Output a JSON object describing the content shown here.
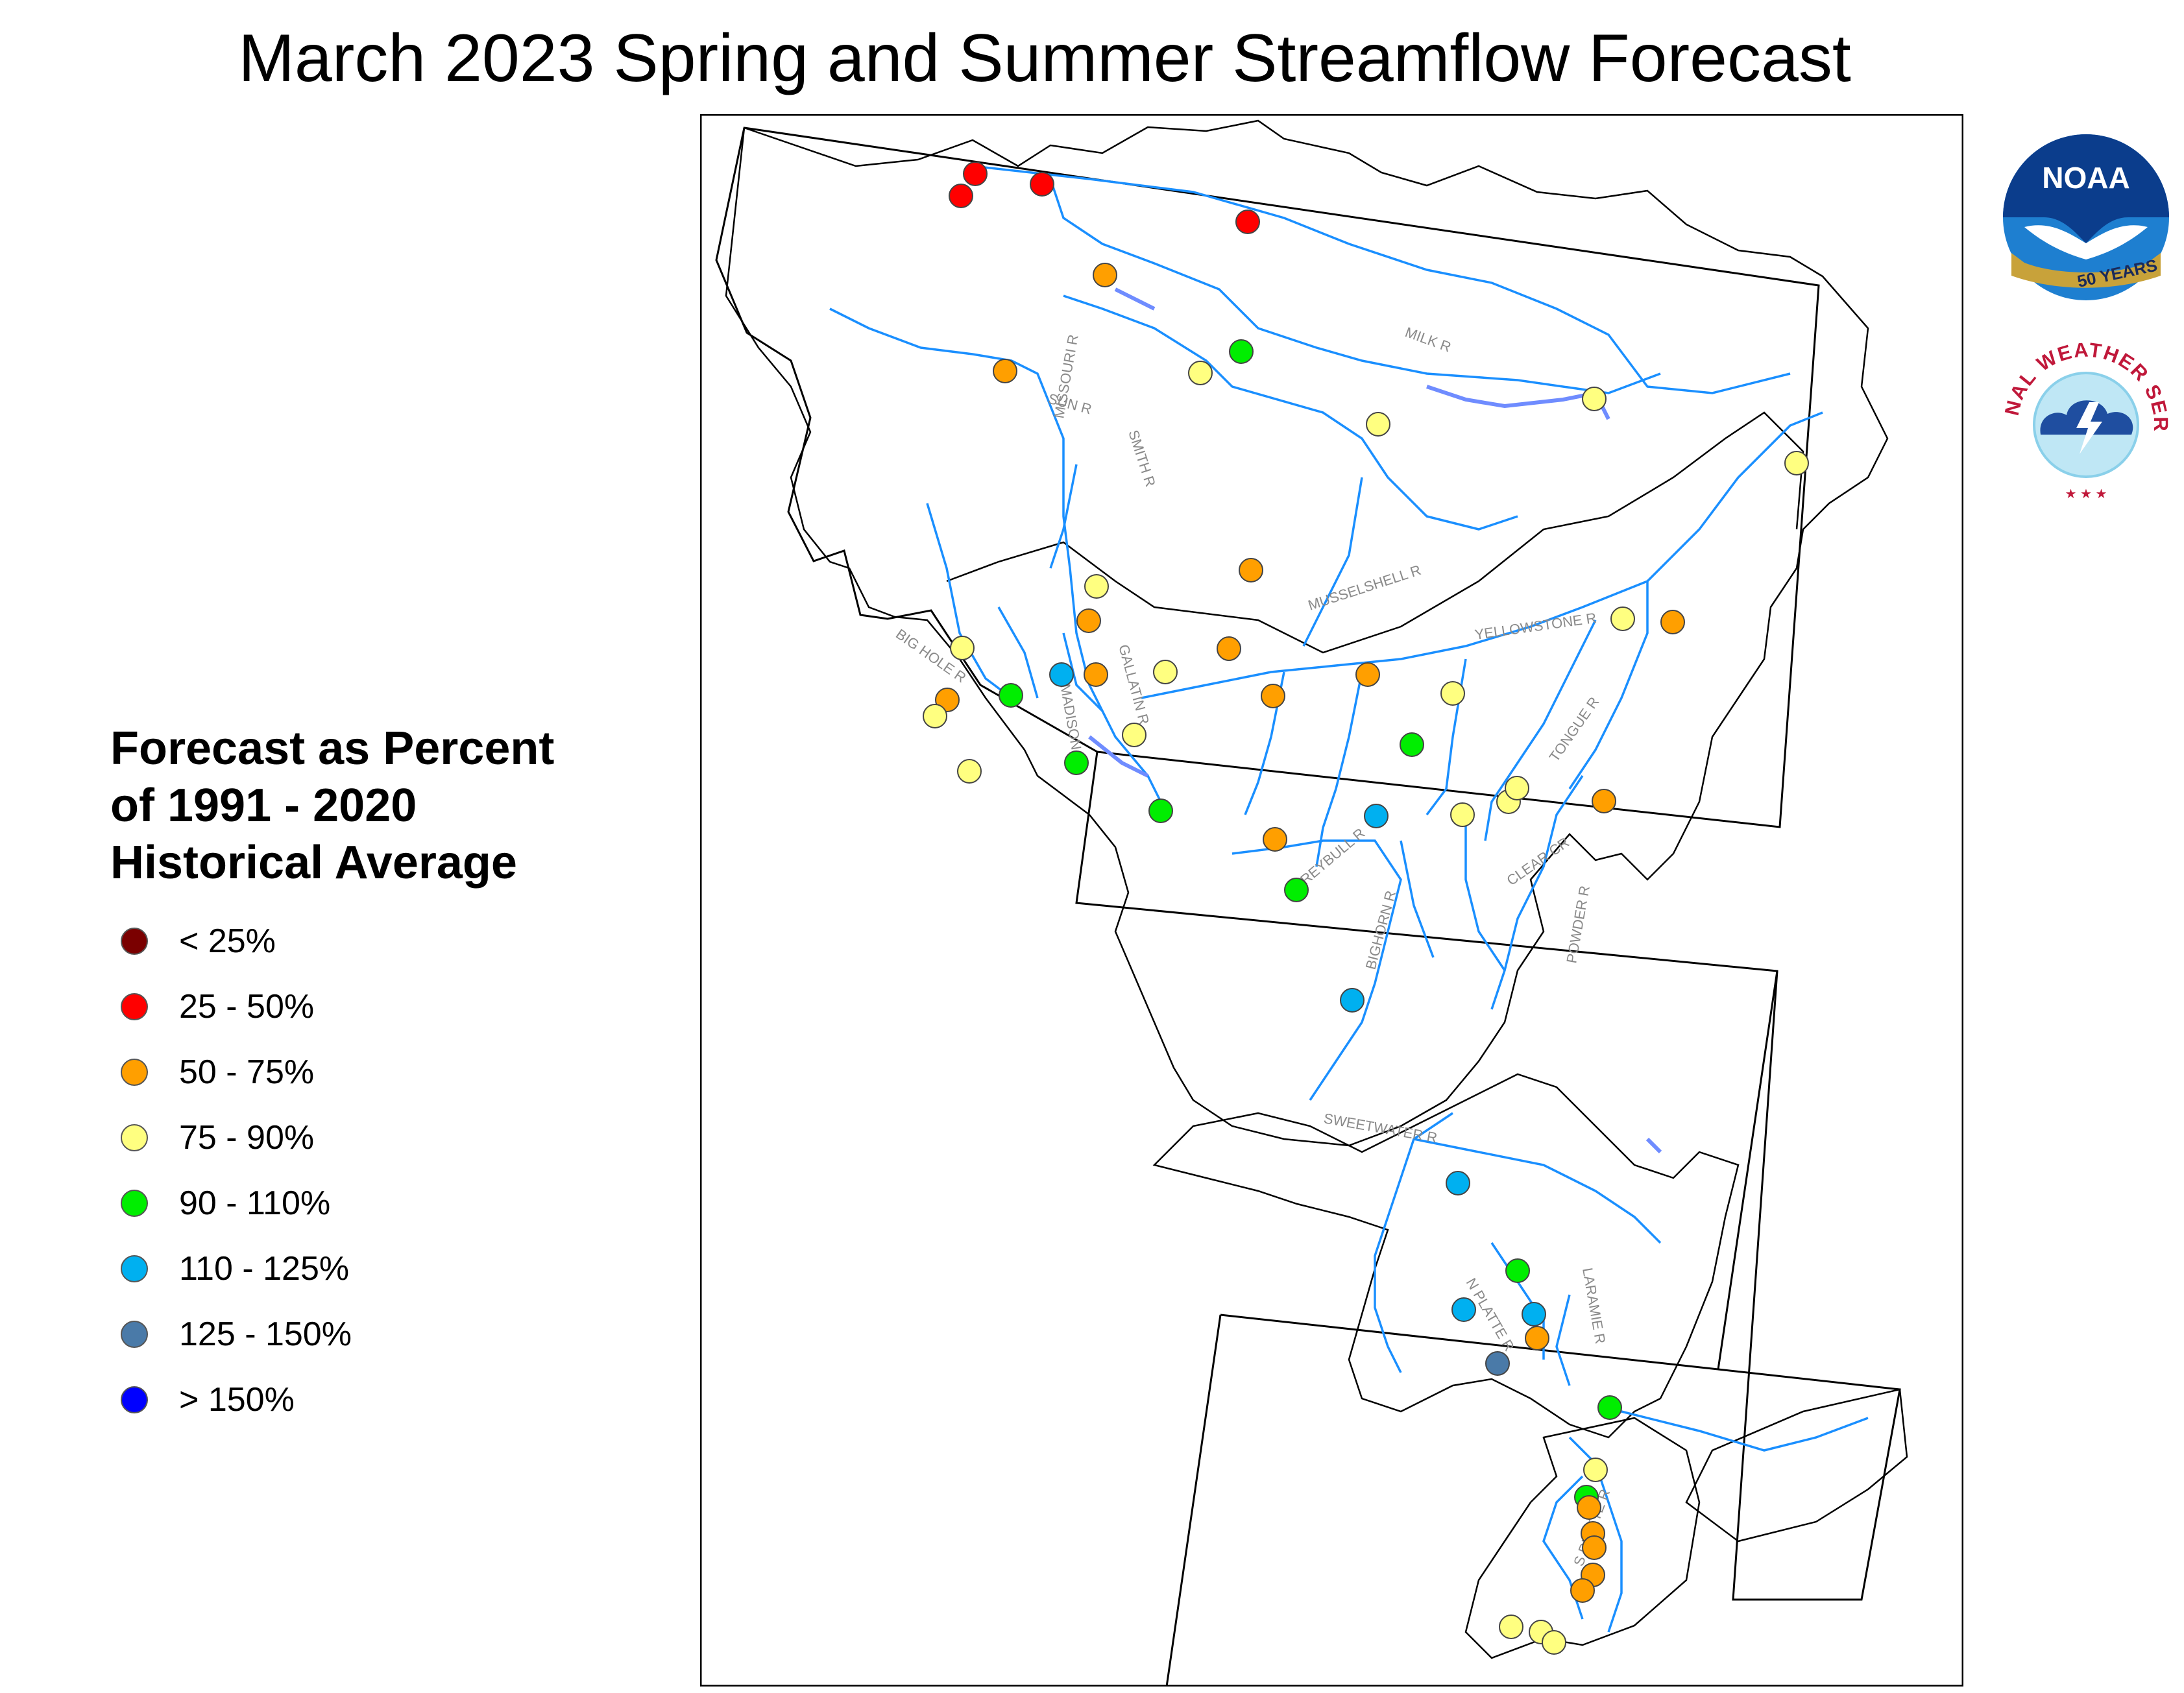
{
  "title": "March 2023 Spring and Summer Streamflow Forecast",
  "legend": {
    "title_lines": [
      "Forecast as Percent",
      "of 1991 - 2020",
      "Historical Average"
    ],
    "classes": [
      {
        "label": "< 25%",
        "color": "#7a0000"
      },
      {
        "label": "25 - 50%",
        "color": "#ff0000"
      },
      {
        "label": "50 - 75%",
        "color": "#ff9f00"
      },
      {
        "label": "75 - 90%",
        "color": "#ffff80"
      },
      {
        "label": "90 - 110%",
        "color": "#00ee00"
      },
      {
        "label": "110 - 125%",
        "color": "#00b0f0"
      },
      {
        "label": "125 - 150%",
        "color": "#4a7aa8"
      },
      {
        "label": "> 150%",
        "color": "#0000ff"
      }
    ]
  },
  "river_labels": [
    "MILK R",
    "SUN R",
    "MISSOURI R",
    "SMITH R",
    "MUSSELSHELL R",
    "BIG HOLE R",
    "GALLATIN R",
    "MADISON R",
    "YELLOWSTONE R",
    "TONGUE R",
    "GREYBULL R",
    "CLEAR CR",
    "POWDER R",
    "BIGHORN R",
    "SWEETWATER R",
    "LARAMIE R",
    "N PLATTE R",
    "S PLATTE R"
  ],
  "logos": {
    "noaa": {
      "text": "NOAA",
      "banner": "50 YEARS"
    },
    "nws": {
      "ring_text": "NATIONAL WEATHER SERVICE"
    }
  }
}
